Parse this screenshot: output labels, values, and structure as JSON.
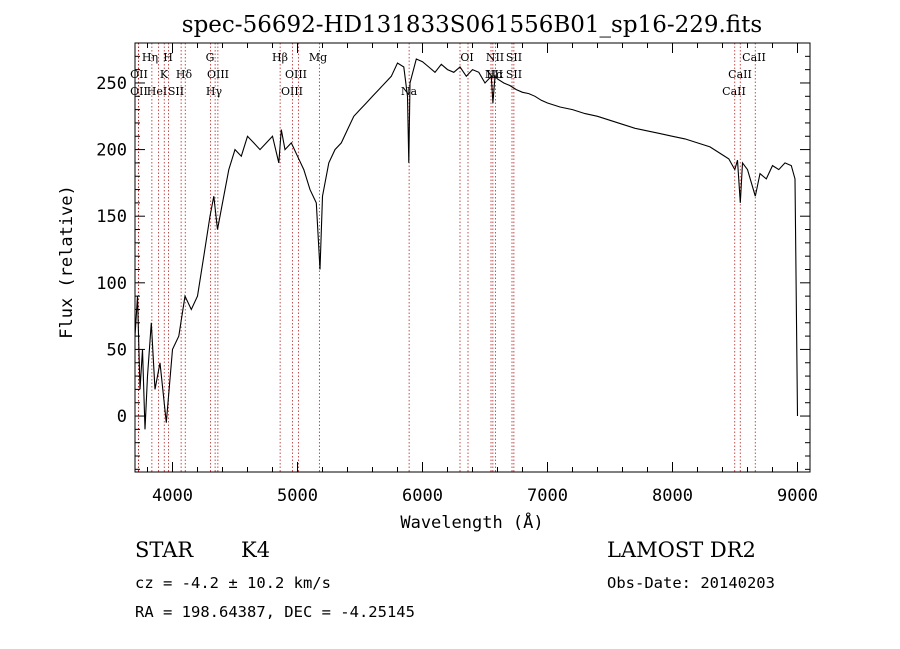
{
  "chart_data": {
    "type": "line",
    "title": "spec-56692-HD131833S061556B01_sp16-229.fits",
    "xlabel": "Wavelength (Å)",
    "ylabel": "Flux (relative)",
    "xlim": [
      3700,
      9100
    ],
    "ylim": [
      -42,
      280
    ],
    "x_ticks": [
      4000,
      5000,
      6000,
      7000,
      8000,
      9000
    ],
    "y_ticks": [
      0,
      50,
      100,
      150,
      200,
      250
    ],
    "grid": false,
    "series": [
      {
        "x": [
          3700,
          3720,
          3740,
          3760,
          3780,
          3800,
          3830,
          3860,
          3900,
          3950,
          4000,
          4050,
          4100,
          4150,
          4200,
          4250,
          4300,
          4330,
          4360,
          4400,
          4450,
          4500,
          4550,
          4600,
          4650,
          4700,
          4750,
          4800,
          4850,
          4870,
          4900,
          4950,
          5000,
          5050,
          5100,
          5150,
          5180,
          5200,
          5250,
          5300,
          5350,
          5400,
          5450,
          5500,
          5550,
          5600,
          5650,
          5700,
          5750,
          5800,
          5850,
          5880,
          5890,
          5900,
          5950,
          6000,
          6050,
          6100,
          6150,
          6200,
          6250,
          6300,
          6350,
          6400,
          6450,
          6500,
          6550,
          6563,
          6580,
          6600,
          6650,
          6700,
          6750,
          6800,
          6850,
          6900,
          6950,
          7000,
          7100,
          7200,
          7300,
          7400,
          7500,
          7600,
          7700,
          7800,
          7900,
          8000,
          8100,
          8200,
          8300,
          8400,
          8450,
          8498,
          8520,
          8542,
          8560,
          8600,
          8662,
          8700,
          8750,
          8800,
          8850,
          8900,
          8950,
          8980,
          9000
        ],
        "y": [
          60,
          90,
          20,
          50,
          -10,
          30,
          70,
          20,
          40,
          -5,
          50,
          60,
          90,
          80,
          90,
          120,
          150,
          165,
          140,
          160,
          185,
          200,
          195,
          210,
          205,
          200,
          205,
          210,
          190,
          215,
          200,
          205,
          195,
          185,
          170,
          160,
          110,
          165,
          190,
          200,
          205,
          215,
          225,
          230,
          235,
          240,
          245,
          250,
          255,
          265,
          262,
          240,
          190,
          250,
          268,
          266,
          262,
          258,
          264,
          260,
          258,
          262,
          255,
          260,
          258,
          250,
          255,
          235,
          255,
          253,
          250,
          248,
          245,
          243,
          242,
          240,
          237,
          235,
          232,
          230,
          227,
          225,
          222,
          219,
          216,
          214,
          212,
          210,
          208,
          205,
          202,
          196,
          193,
          185,
          192,
          160,
          190,
          185,
          165,
          182,
          178,
          188,
          185,
          190,
          188,
          178,
          0
        ]
      }
    ],
    "lines": [
      {
        "label": "Hη",
        "x": 3835
      },
      {
        "label": "OII",
        "x": 3727
      },
      {
        "label": "OII",
        "x": 3729
      },
      {
        "label": "K",
        "x": 3934
      },
      {
        "label": "H",
        "x": 3968
      },
      {
        "label": "HeI",
        "x": 3889
      },
      {
        "label": "Hδ",
        "x": 4102
      },
      {
        "label": "SII",
        "x": 4069
      },
      {
        "label": "G",
        "x": 4305
      },
      {
        "label": "OIII",
        "x": 4363
      },
      {
        "label": "Hγ",
        "x": 4341
      },
      {
        "label": "Hβ",
        "x": 4861
      },
      {
        "label": "OIII",
        "x": 4959
      },
      {
        "label": "OIII",
        "x": 5007
      },
      {
        "label": "Mg",
        "x": 5175
      },
      {
        "label": "Na",
        "x": 5893
      },
      {
        "label": "OI",
        "x": 6300
      },
      {
        "label": "OI",
        "x": 6364
      },
      {
        "label": "NII",
        "x": 6548
      },
      {
        "label": "NII",
        "x": 6583
      },
      {
        "label": "Hα",
        "x": 6563
      },
      {
        "label": "SII",
        "x": 6716
      },
      {
        "label": "SII",
        "x": 6731
      },
      {
        "label": "CaII",
        "x": 8498
      },
      {
        "label": "CaII",
        "x": 8542
      },
      {
        "label": "CaII",
        "x": 8662
      }
    ],
    "line_labels": [
      {
        "text": "Hη"
      },
      {
        "text": "H"
      },
      {
        "text": "G"
      },
      {
        "text": "Hβ"
      },
      {
        "text": "Mg"
      },
      {
        "text": "OI"
      },
      {
        "text": "NII"
      },
      {
        "text": "SII"
      },
      {
        "text": "CaII"
      },
      {
        "text": "OII"
      },
      {
        "text": "K"
      },
      {
        "text": "Hδ"
      },
      {
        "text": "OIII"
      },
      {
        "text": "OIII"
      },
      {
        "text": "Hα"
      },
      {
        "text": "NII"
      },
      {
        "text": "SII"
      },
      {
        "text": "CaII"
      },
      {
        "text": "OII"
      },
      {
        "text": "HeI"
      },
      {
        "text": "SII"
      },
      {
        "text": "Hγ"
      },
      {
        "text": "OIII"
      },
      {
        "text": "Na"
      },
      {
        "text": "CaII"
      }
    ]
  },
  "info": {
    "object_class": "STAR",
    "subclass": "K4",
    "survey": "LAMOST DR2",
    "redshift": "cz = -4.2 ± 10.2 km/s",
    "obs_date": "Obs-Date: 20140203",
    "coords": "RA = 198.64387, DEC =  -4.25145"
  }
}
